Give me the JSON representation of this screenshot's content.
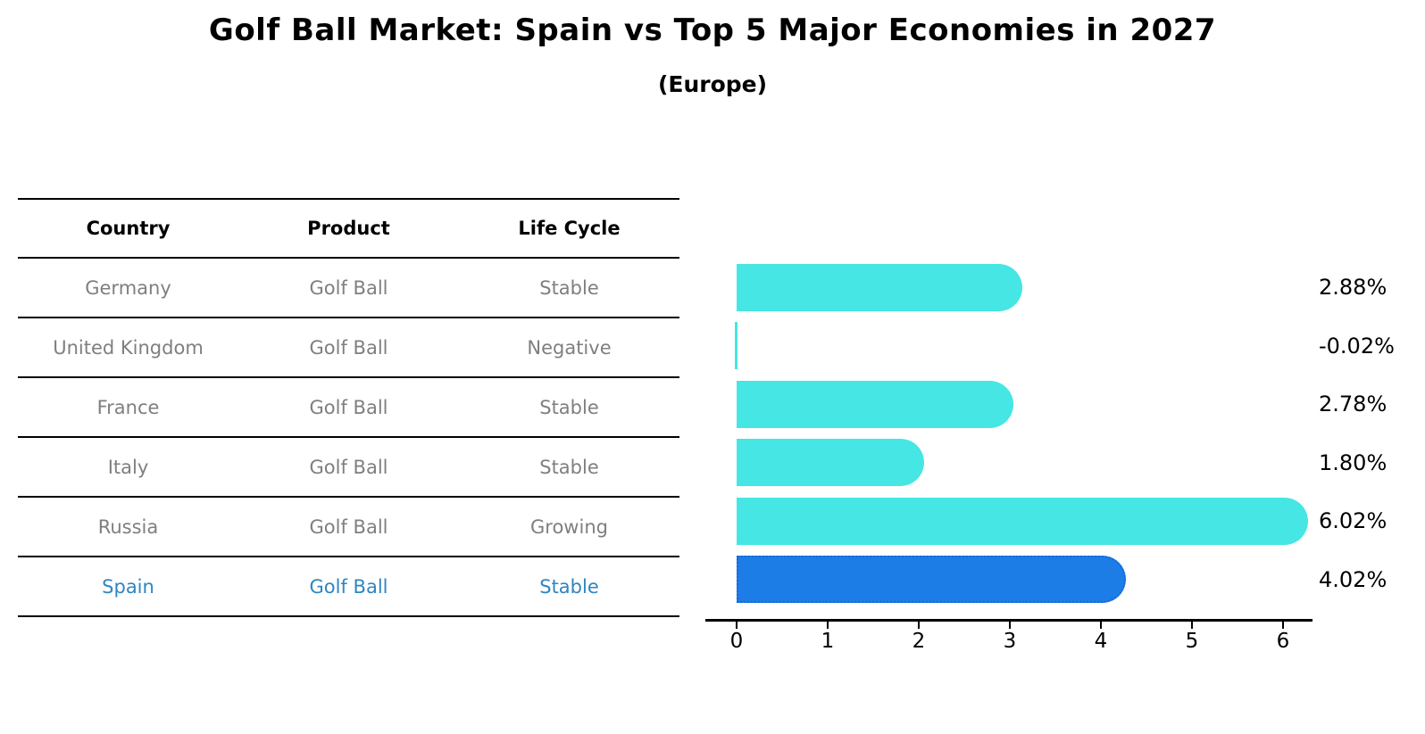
{
  "title": "Golf Ball Market: Spain vs Top 5 Major Economies in 2027",
  "subtitle": "(Europe)",
  "table": {
    "headers": [
      "Country",
      "Product",
      "Life Cycle"
    ],
    "rows": [
      {
        "country": "Germany",
        "product": "Golf Ball",
        "life_cycle": "Stable",
        "highlighted": false
      },
      {
        "country": "United Kingdom",
        "product": "Golf Ball",
        "life_cycle": "Negative",
        "highlighted": false
      },
      {
        "country": "France",
        "product": "Golf Ball",
        "life_cycle": "Stable",
        "highlighted": false
      },
      {
        "country": "Italy",
        "product": "Golf Ball",
        "life_cycle": "Stable",
        "highlighted": false
      },
      {
        "country": "Russia",
        "product": "Golf Ball",
        "life_cycle": "Growing",
        "highlighted": false
      },
      {
        "country": "Spain",
        "product": "Golf Ball",
        "life_cycle": "Stable",
        "highlighted": true
      }
    ]
  },
  "chart_data": {
    "type": "bar",
    "orientation": "horizontal",
    "title": "Golf Ball Market: Spain vs Top 5 Major Economies in 2027",
    "subtitle": "(Europe)",
    "categories": [
      "Germany",
      "United Kingdom",
      "France",
      "Italy",
      "Russia",
      "Spain"
    ],
    "values": [
      2.88,
      -0.02,
      2.78,
      1.8,
      6.02,
      4.02
    ],
    "value_labels": [
      "2.88%",
      "-0.02%",
      "2.78%",
      "1.80%",
      "6.02%",
      "4.02%"
    ],
    "xlabel": "",
    "ylabel": "",
    "x_ticks": [
      "0",
      "1",
      "2",
      "3",
      "4",
      "5",
      "6"
    ],
    "xlim": [
      -0.35,
      6.35
    ],
    "grid": false,
    "legend": "none",
    "highlight_index": 5,
    "colors": {
      "bar_default": "#45e6e3",
      "bar_highlight": "#1c7de6",
      "bar_highlight_border": "#1668d9",
      "highlight_text": "#2e86c1",
      "table_text": "#7f7f7f",
      "header_text": "#000000",
      "axis": "#000000"
    }
  }
}
